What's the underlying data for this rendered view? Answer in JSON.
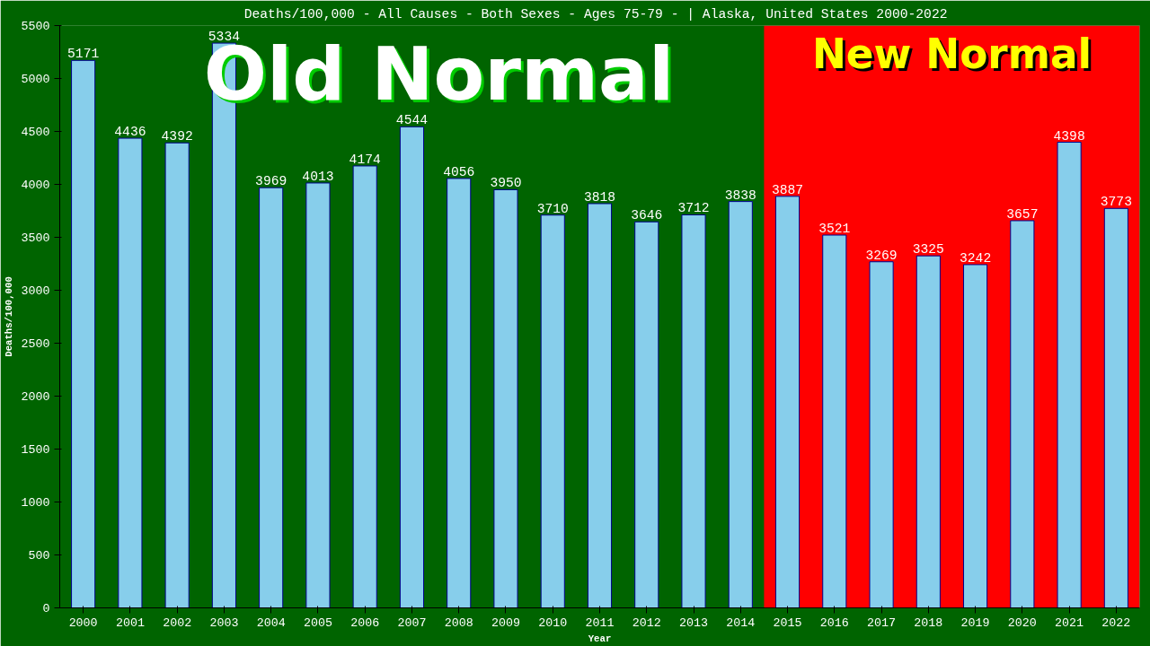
{
  "chart_data": {
    "type": "bar",
    "title": "Deaths/100,000 - All Causes - Both Sexes - Ages 75-79 -  | Alaska, United States 2000-2022",
    "xlabel": "Year",
    "ylabel": "Deaths/100,000",
    "categories": [
      "2000",
      "2001",
      "2002",
      "2003",
      "2004",
      "2005",
      "2006",
      "2007",
      "2008",
      "2009",
      "2010",
      "2011",
      "2012",
      "2013",
      "2014",
      "2015",
      "2016",
      "2017",
      "2018",
      "2019",
      "2020",
      "2021",
      "2022"
    ],
    "values": [
      5171,
      4436,
      4392,
      5334,
      3969,
      4013,
      4174,
      4544,
      4056,
      3950,
      3710,
      3818,
      3646,
      3712,
      3838,
      3887,
      3521,
      3269,
      3325,
      3242,
      3657,
      4398,
      3773
    ],
    "color": "#87ceeb",
    "data_labels": true,
    "ylim": [
      0,
      5500
    ],
    "yticks": [
      0,
      500,
      1000,
      1500,
      2000,
      2500,
      3000,
      3500,
      4000,
      4500,
      5000,
      5500
    ],
    "bands": [
      {
        "axis": "x",
        "from": "2000",
        "to": "2014",
        "label": "Old Normal",
        "color": "#006400"
      },
      {
        "axis": "x",
        "from": "2015",
        "to": "2022",
        "label": "New Normal",
        "color": "#ff0000"
      }
    ]
  }
}
